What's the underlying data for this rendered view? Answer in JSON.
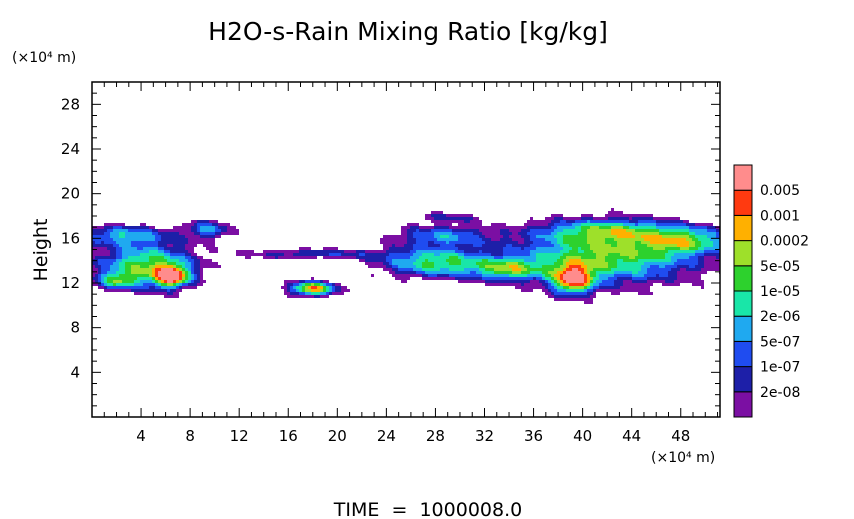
{
  "chart_data": {
    "type": "heatmap",
    "title": "H2O-s-Rain Mixing Ratio [kg/kg]",
    "ylabel": "Height",
    "xunit_label": "(×10⁴ m)",
    "yunit_label": "(×10⁴ m)",
    "footer": "TIME  =  1000008.0",
    "xlim": [
      0,
      51.2
    ],
    "ylim": [
      0,
      30
    ],
    "xticks": [
      4,
      8,
      12,
      16,
      20,
      24,
      28,
      32,
      36,
      40,
      44,
      48
    ],
    "yticks": [
      4,
      8,
      12,
      16,
      20,
      24,
      28
    ],
    "colorbar": {
      "levels": [
        "2e-08",
        "1e-07",
        "5e-07",
        "2e-06",
        "1e-05",
        "5e-05",
        "0.0002",
        "0.001",
        "0.005"
      ],
      "colors": [
        "#7b0fa3",
        "#1d1fa8",
        "#1f4cf0",
        "#1fa9f0",
        "#19e6a8",
        "#2dd12d",
        "#9ee02a",
        "#ffb000",
        "#ff3a10",
        "#ff8c8c"
      ]
    },
    "cloud_regions": [
      {
        "x": [
          0,
          8
        ],
        "y": [
          11,
          17.5
        ],
        "max_level": 8,
        "desc": "left anvil with core near x=6.5, y=12.5"
      },
      {
        "x": [
          8,
          12
        ],
        "y": [
          15.5,
          18
        ],
        "max_level": 3
      },
      {
        "x": [
          12,
          25
        ],
        "y": [
          13.5,
          15.5
        ],
        "max_level": 2
      },
      {
        "x": [
          16,
          20
        ],
        "y": [
          10.5,
          12.5
        ],
        "max_level": 7,
        "desc": "isolated cell near x=18, y=11.5"
      },
      {
        "x": [
          22,
          33
        ],
        "y": [
          12,
          18.5
        ],
        "max_level": 5
      },
      {
        "x": [
          33,
          51.2
        ],
        "y": [
          10,
          18
        ],
        "max_level": 8,
        "desc": "large anvil with core near x=39, y=12"
      }
    ]
  }
}
